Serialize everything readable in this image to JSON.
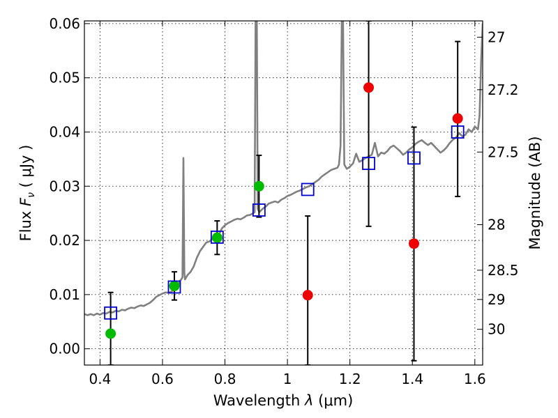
{
  "chart_data": {
    "type": "scatter",
    "xlabel": "Wavelength  λ (μm)",
    "ylabel": "Flux  Fν  ( μJy )",
    "ylabel_parts": {
      "prefix": "Flux  ",
      "symbol": "F",
      "subscript": "ν",
      "suffix": "  ( μJy )"
    },
    "xlabel_parts": {
      "prefix": "Wavelength  ",
      "symbol": "λ",
      "suffix": " (μm)"
    },
    "y2label": "Magnitude (AB)",
    "xlim": [
      0.35,
      1.625
    ],
    "ylim": [
      -0.003,
      0.0605
    ],
    "grid": true,
    "x_ticks": [
      0.4,
      0.6,
      0.8,
      1.0,
      1.2,
      1.4,
      1.6
    ],
    "x_tick_labels": [
      "0.4",
      "0.6",
      "0.8",
      "1",
      "1.2",
      "1.4",
      "1.6"
    ],
    "y_ticks": [
      0.0,
      0.01,
      0.02,
      0.03,
      0.04,
      0.05,
      0.06
    ],
    "y_tick_labels": [
      "0.00",
      "0.01",
      "0.02",
      "0.03",
      "0.04",
      "0.05",
      "0.06"
    ],
    "y2_ticks": [
      {
        "label": "27",
        "flux": 0.0575
      },
      {
        "label": "27.2",
        "flux": 0.0478
      },
      {
        "label": "27.5",
        "flux": 0.0363
      },
      {
        "label": "28",
        "flux": 0.0229
      },
      {
        "label": "28.5",
        "flux": 0.0145
      },
      {
        "label": "29",
        "flux": 0.0091
      },
      {
        "label": "30",
        "flux": 0.0036
      }
    ],
    "colors": {
      "spectrum": "#808080",
      "green_points": "#00bb00",
      "red_points": "#ee0000",
      "model_squares": "#0000cc",
      "error_bars": "#000000"
    },
    "spectrum": [
      [
        0.35,
        0.0064
      ],
      [
        0.36,
        0.0062
      ],
      [
        0.37,
        0.0064
      ],
      [
        0.38,
        0.0062
      ],
      [
        0.39,
        0.0065
      ],
      [
        0.4,
        0.0063
      ],
      [
        0.41,
        0.0066
      ],
      [
        0.42,
        0.0065
      ],
      [
        0.43,
        0.0068
      ],
      [
        0.44,
        0.0067
      ],
      [
        0.45,
        0.007
      ],
      [
        0.46,
        0.0069
      ],
      [
        0.47,
        0.0072
      ],
      [
        0.48,
        0.0071
      ],
      [
        0.49,
        0.0074
      ],
      [
        0.5,
        0.0076
      ],
      [
        0.51,
        0.0075
      ],
      [
        0.52,
        0.0078
      ],
      [
        0.53,
        0.008
      ],
      [
        0.54,
        0.0079
      ],
      [
        0.55,
        0.0082
      ],
      [
        0.56,
        0.0085
      ],
      [
        0.57,
        0.009
      ],
      [
        0.58,
        0.0096
      ],
      [
        0.59,
        0.0099
      ],
      [
        0.6,
        0.0102
      ],
      [
        0.61,
        0.0104
      ],
      [
        0.62,
        0.0103
      ],
      [
        0.63,
        0.0106
      ],
      [
        0.64,
        0.011
      ],
      [
        0.65,
        0.0115
      ],
      [
        0.655,
        0.0125
      ],
      [
        0.66,
        0.0128
      ],
      [
        0.664,
        0.0132
      ],
      [
        0.667,
        0.0352
      ],
      [
        0.67,
        0.014
      ],
      [
        0.672,
        0.0128
      ],
      [
        0.68,
        0.0136
      ],
      [
        0.69,
        0.0142
      ],
      [
        0.7,
        0.0152
      ],
      [
        0.71,
        0.0168
      ],
      [
        0.72,
        0.018
      ],
      [
        0.73,
        0.0188
      ],
      [
        0.74,
        0.0196
      ],
      [
        0.75,
        0.0198
      ],
      [
        0.76,
        0.0203
      ],
      [
        0.77,
        0.0208
      ],
      [
        0.78,
        0.021
      ],
      [
        0.79,
        0.0222
      ],
      [
        0.8,
        0.0228
      ],
      [
        0.81,
        0.0232
      ],
      [
        0.82,
        0.0235
      ],
      [
        0.83,
        0.0238
      ],
      [
        0.84,
        0.024
      ],
      [
        0.85,
        0.0239
      ],
      [
        0.86,
        0.0242
      ],
      [
        0.87,
        0.0246
      ],
      [
        0.88,
        0.0247
      ],
      [
        0.89,
        0.025
      ],
      [
        0.895,
        0.0252
      ],
      [
        0.898,
        0.0605
      ],
      [
        0.902,
        0.0605
      ],
      [
        0.905,
        0.0258
      ],
      [
        0.91,
        0.0252
      ],
      [
        0.92,
        0.0258
      ],
      [
        0.93,
        0.0262
      ],
      [
        0.94,
        0.0268
      ],
      [
        0.95,
        0.027
      ],
      [
        0.96,
        0.0272
      ],
      [
        0.97,
        0.027
      ],
      [
        0.98,
        0.0275
      ],
      [
        0.99,
        0.0278
      ],
      [
        1.0,
        0.0282
      ],
      [
        1.01,
        0.0284
      ],
      [
        1.02,
        0.0287
      ],
      [
        1.03,
        0.029
      ],
      [
        1.04,
        0.0292
      ],
      [
        1.05,
        0.0295
      ],
      [
        1.06,
        0.0298
      ],
      [
        1.07,
        0.03
      ],
      [
        1.08,
        0.0304
      ],
      [
        1.09,
        0.0308
      ],
      [
        1.1,
        0.0312
      ],
      [
        1.11,
        0.0318
      ],
      [
        1.12,
        0.0322
      ],
      [
        1.13,
        0.0326
      ],
      [
        1.14,
        0.033
      ],
      [
        1.15,
        0.0332
      ],
      [
        1.16,
        0.0334
      ],
      [
        1.165,
        0.034
      ],
      [
        1.17,
        0.0375
      ],
      [
        1.174,
        0.0605
      ],
      [
        1.178,
        0.0605
      ],
      [
        1.182,
        0.034
      ],
      [
        1.19,
        0.0332
      ],
      [
        1.2,
        0.0336
      ],
      [
        1.21,
        0.0342
      ],
      [
        1.22,
        0.036
      ],
      [
        1.23,
        0.0345
      ],
      [
        1.24,
        0.0348
      ],
      [
        1.25,
        0.0352
      ],
      [
        1.26,
        0.0355
      ],
      [
        1.27,
        0.0358
      ],
      [
        1.28,
        0.038
      ],
      [
        1.29,
        0.0355
      ],
      [
        1.3,
        0.0362
      ],
      [
        1.31,
        0.036
      ],
      [
        1.32,
        0.0365
      ],
      [
        1.33,
        0.0372
      ],
      [
        1.34,
        0.0375
      ],
      [
        1.35,
        0.037
      ],
      [
        1.36,
        0.0365
      ],
      [
        1.37,
        0.0358
      ],
      [
        1.38,
        0.0362
      ],
      [
        1.39,
        0.0368
      ],
      [
        1.4,
        0.0372
      ],
      [
        1.41,
        0.0378
      ],
      [
        1.42,
        0.0382
      ],
      [
        1.43,
        0.0385
      ],
      [
        1.44,
        0.038
      ],
      [
        1.45,
        0.0376
      ],
      [
        1.46,
        0.038
      ],
      [
        1.47,
        0.0374
      ],
      [
        1.48,
        0.0368
      ],
      [
        1.49,
        0.0362
      ],
      [
        1.5,
        0.0366
      ],
      [
        1.51,
        0.0372
      ],
      [
        1.52,
        0.038
      ],
      [
        1.53,
        0.0386
      ],
      [
        1.54,
        0.039
      ],
      [
        1.55,
        0.0398
      ],
      [
        1.56,
        0.0392
      ],
      [
        1.57,
        0.0395
      ],
      [
        1.58,
        0.0405
      ],
      [
        1.59,
        0.04
      ],
      [
        1.6,
        0.041
      ],
      [
        1.61,
        0.0405
      ],
      [
        1.615,
        0.043
      ],
      [
        1.62,
        0.053
      ],
      [
        1.625,
        0.06
      ]
    ],
    "series": [
      {
        "marker": "circle",
        "color": "#00bb00",
        "points": [
          {
            "x": 0.434,
            "y": 0.0028
          },
          {
            "x": 0.638,
            "y": 0.0116
          },
          {
            "x": 0.775,
            "y": 0.0205
          },
          {
            "x": 0.909,
            "y": 0.03
          }
        ]
      },
      {
        "marker": "circle",
        "color": "#ee0000",
        "points": [
          {
            "x": 1.065,
            "y": 0.0099
          },
          {
            "x": 1.26,
            "y": 0.0482
          },
          {
            "x": 1.405,
            "y": 0.0194
          },
          {
            "x": 1.545,
            "y": 0.0425
          }
        ]
      },
      {
        "marker": "square",
        "color": "#0000cc",
        "points": [
          {
            "x": 0.434,
            "y": 0.0066
          },
          {
            "x": 0.638,
            "y": 0.0114
          },
          {
            "x": 0.775,
            "y": 0.0206
          },
          {
            "x": 0.909,
            "y": 0.0256
          },
          {
            "x": 1.065,
            "y": 0.0294
          },
          {
            "x": 1.26,
            "y": 0.0342
          },
          {
            "x": 1.405,
            "y": 0.0352
          },
          {
            "x": 1.545,
            "y": 0.04
          }
        ]
      }
    ],
    "error_bars": [
      {
        "x": 0.434,
        "ylow": -0.003,
        "yhigh": 0.0104
      },
      {
        "x": 0.638,
        "ylow": 0.009,
        "yhigh": 0.0142
      },
      {
        "x": 0.775,
        "ylow": 0.0174,
        "yhigh": 0.0236
      },
      {
        "x": 0.909,
        "ylow": 0.0243,
        "yhigh": 0.0357
      },
      {
        "x": 1.065,
        "ylow": -0.003,
        "yhigh": 0.0245
      },
      {
        "x": 1.26,
        "ylow": 0.0226,
        "yhigh": 0.0605
      },
      {
        "x": 1.405,
        "ylow": -0.0022,
        "yhigh": 0.0409
      },
      {
        "x": 1.545,
        "ylow": 0.0281,
        "yhigh": 0.0567
      }
    ]
  }
}
